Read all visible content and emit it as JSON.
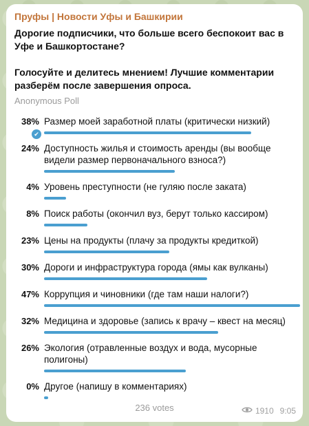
{
  "channel": {
    "name": "Пруфы | Новости Уфы и Башкирии"
  },
  "poll": {
    "question_line1": "Дорогие подписчики, что больше всего беспокоит вас в Уфе и Башкортостане?",
    "question_line2": "Голосуйте и делитесь мнением! Лучшие комментарии разберём после завершения опроса.",
    "type": "Anonymous Poll",
    "options": [
      {
        "percent_label": "38%",
        "percent": 38,
        "text": "Размер моей заработной платы (критически низкий)",
        "selected": true
      },
      {
        "percent_label": "24%",
        "percent": 24,
        "text": "Доступность жилья и стоимость аренды (вы вообще видели размер первоначального взноса?)",
        "selected": false
      },
      {
        "percent_label": "4%",
        "percent": 4,
        "text": "Уровень преступности (не гуляю после заката)",
        "selected": false
      },
      {
        "percent_label": "8%",
        "percent": 8,
        "text": "Поиск работы (окончил вуз, берут только кассиром)",
        "selected": false
      },
      {
        "percent_label": "23%",
        "percent": 23,
        "text": "Цены на продукты (плачу за продукты кредиткой)",
        "selected": false
      },
      {
        "percent_label": "30%",
        "percent": 30,
        "text": "Дороги и инфраструктура города (ямы как вулканы)",
        "selected": false
      },
      {
        "percent_label": "47%",
        "percent": 47,
        "text": "Коррупция и чиновники (где там наши налоги?)",
        "selected": false
      },
      {
        "percent_label": "32%",
        "percent": 32,
        "text": "Медицина и здоровье (запись к врачу – квест на месяц)",
        "selected": false
      },
      {
        "percent_label": "26%",
        "percent": 26,
        "text": "Экология (отравленные воздух и вода, мусорные полигоны)",
        "selected": false
      },
      {
        "percent_label": "0%",
        "percent": 0,
        "text": "Другое (напишу в комментариях)",
        "selected": false
      }
    ],
    "votes_label": "236 votes"
  },
  "message_meta": {
    "views": "1910",
    "time": "9:05",
    "views_icon": "eye-icon",
    "selected_icon": "check-icon"
  },
  "colors": {
    "accent": "#4a9fd0",
    "channel_name": "#c2753a"
  }
}
